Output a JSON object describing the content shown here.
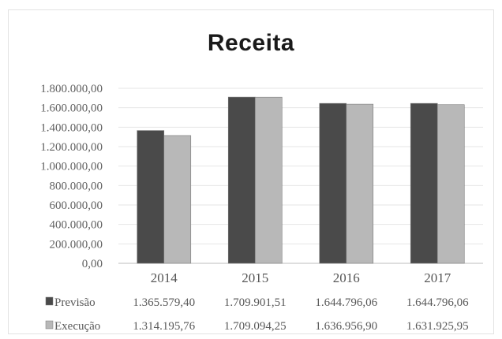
{
  "chart_data": {
    "type": "bar",
    "title": "Receita",
    "categories": [
      "2014",
      "2015",
      "2016",
      "2017"
    ],
    "series": [
      {
        "name": "Previsão",
        "color": "#4a4a4a",
        "values": [
          1365579.4,
          1709901.51,
          1644796.06,
          1644796.06
        ],
        "labels": [
          "1.365.579,40",
          "1.709.901,51",
          "1.644.796,06",
          "1.644.796,06"
        ]
      },
      {
        "name": "Execução",
        "color": "#b8b8b8",
        "values": [
          1314195.76,
          1709094.25,
          1636956.9,
          1631925.95
        ],
        "labels": [
          "1.314.195,76",
          "1.709.094,25",
          "1.636.956,90",
          "1.631.925,95"
        ]
      }
    ],
    "yticks": [
      0,
      200000,
      400000,
      600000,
      800000,
      1000000,
      1200000,
      1400000,
      1600000,
      1800000
    ],
    "ytick_labels": [
      "0,00",
      "200.000,00",
      "400.000,00",
      "600.000,00",
      "800.000,00",
      "1.000.000,00",
      "1.200.000,00",
      "1.400.000,00",
      "1.600.000,00",
      "1.800.000,00"
    ],
    "ylim": [
      0,
      1800000
    ],
    "grid": true,
    "legend": "data-table-below"
  }
}
